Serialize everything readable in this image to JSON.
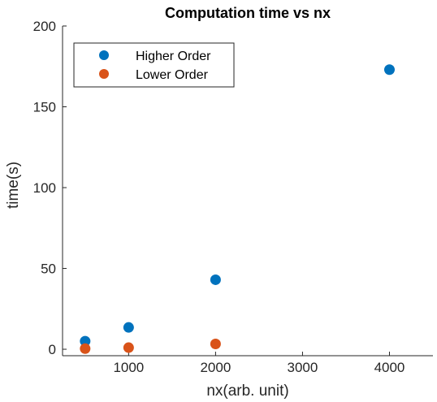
{
  "chart_data": {
    "type": "scatter",
    "title": "Computation time vs nx",
    "xlabel": "nx(arb. unit)",
    "ylabel": "time(s)",
    "xlim": [
      240,
      4500
    ],
    "ylim": [
      -4,
      200
    ],
    "xticks": [
      1000,
      2000,
      3000,
      4000
    ],
    "yticks": [
      0,
      50,
      100,
      150,
      200
    ],
    "grid": false,
    "legend_position": "top-left",
    "series": [
      {
        "name": "Higher Order",
        "color": "#0072BD",
        "x": [
          500,
          1000,
          2000,
          4000
        ],
        "y": [
          5,
          13.5,
          43,
          173
        ]
      },
      {
        "name": "Lower Order",
        "color": "#D95319",
        "x": [
          500,
          1000,
          2000
        ],
        "y": [
          0.4,
          1,
          3.3
        ]
      }
    ]
  }
}
